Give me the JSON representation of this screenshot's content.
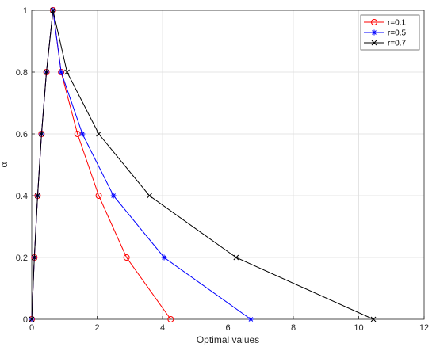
{
  "chart_data": {
    "type": "line",
    "xlabel": "Optimal values",
    "ylabel": "α",
    "xlim": [
      0,
      12
    ],
    "ylim": [
      0,
      1
    ],
    "xticks": [
      0,
      2,
      4,
      6,
      8,
      10,
      12
    ],
    "yticks": [
      0,
      0.2,
      0.4,
      0.6,
      0.8,
      1
    ],
    "grid": true,
    "legend_position": "top-right",
    "series": [
      {
        "name": "r=0.1",
        "color": "#ff0000",
        "marker": "circle",
        "points": [
          {
            "x": 0,
            "y": 0
          },
          {
            "x": 0.08,
            "y": 0.2
          },
          {
            "x": 0.18,
            "y": 0.4
          },
          {
            "x": 0.3,
            "y": 0.6
          },
          {
            "x": 0.45,
            "y": 0.8
          },
          {
            "x": 0.65,
            "y": 1
          },
          {
            "x": 0.9,
            "y": 0.8
          },
          {
            "x": 1.4,
            "y": 0.6
          },
          {
            "x": 2.05,
            "y": 0.4
          },
          {
            "x": 2.9,
            "y": 0.2
          },
          {
            "x": 4.25,
            "y": 0
          }
        ]
      },
      {
        "name": "r=0.5",
        "color": "#0000ff",
        "marker": "star",
        "points": [
          {
            "x": 0,
            "y": 0
          },
          {
            "x": 0.08,
            "y": 0.2
          },
          {
            "x": 0.18,
            "y": 0.4
          },
          {
            "x": 0.3,
            "y": 0.6
          },
          {
            "x": 0.45,
            "y": 0.8
          },
          {
            "x": 0.65,
            "y": 1
          },
          {
            "x": 0.9,
            "y": 0.8
          },
          {
            "x": 1.55,
            "y": 0.6
          },
          {
            "x": 2.5,
            "y": 0.4
          },
          {
            "x": 4.05,
            "y": 0.2
          },
          {
            "x": 6.7,
            "y": 0
          }
        ]
      },
      {
        "name": "r=0.7",
        "color": "#000000",
        "marker": "x",
        "points": [
          {
            "x": 0,
            "y": 0
          },
          {
            "x": 0.08,
            "y": 0.2
          },
          {
            "x": 0.18,
            "y": 0.4
          },
          {
            "x": 0.3,
            "y": 0.6
          },
          {
            "x": 0.45,
            "y": 0.8
          },
          {
            "x": 0.65,
            "y": 1
          },
          {
            "x": 1.08,
            "y": 0.8
          },
          {
            "x": 2.05,
            "y": 0.6
          },
          {
            "x": 3.6,
            "y": 0.4
          },
          {
            "x": 6.25,
            "y": 0.2
          },
          {
            "x": 10.45,
            "y": 0
          }
        ]
      }
    ]
  }
}
